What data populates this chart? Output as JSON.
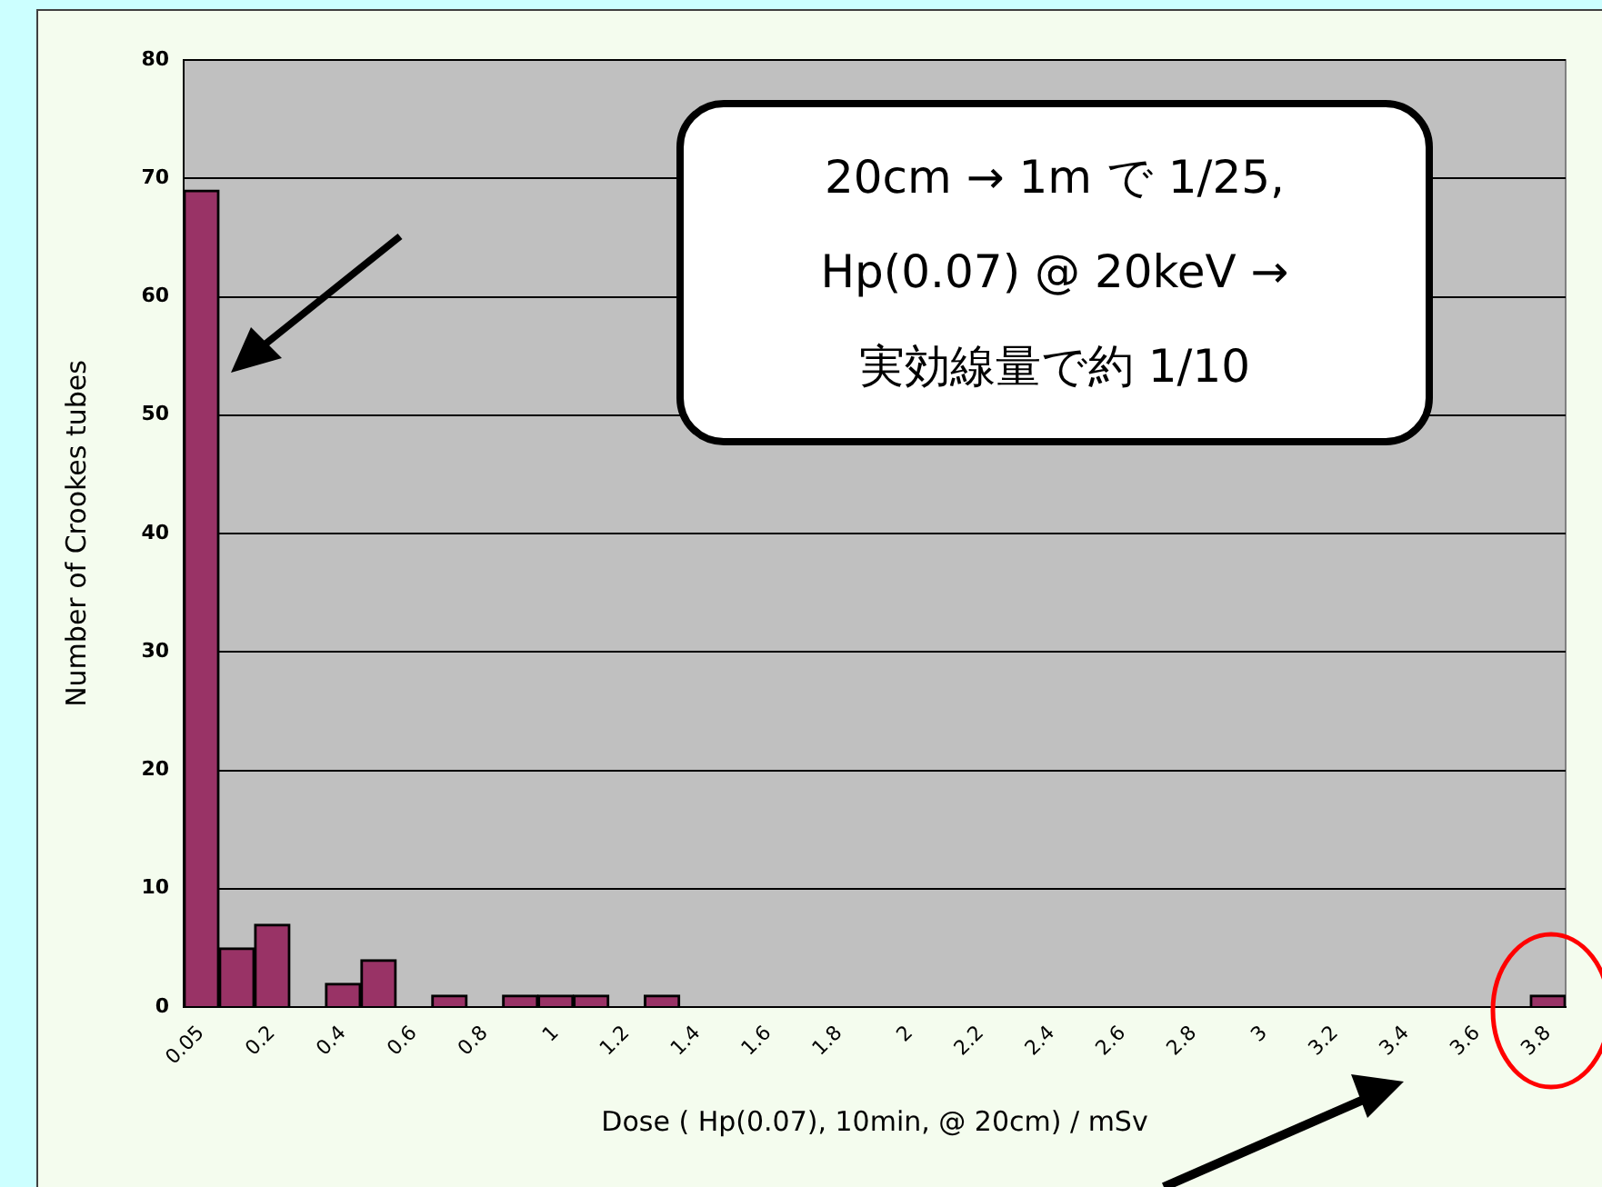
{
  "chart_data": {
    "type": "bar",
    "xlabel": "Dose ( Hp(0.07), 10min, @ 20cm) / mSv",
    "ylabel": "Number of Crookes tubes",
    "categories": [
      "0.05",
      null,
      "0.2",
      null,
      "0.4",
      null,
      "0.6",
      null,
      "0.8",
      null,
      "1",
      null,
      "1.2",
      null,
      "1.4",
      null,
      "1.6",
      null,
      "1.8",
      null,
      "2",
      null,
      "2.2",
      null,
      "2.4",
      null,
      "2.6",
      null,
      "2.8",
      null,
      "3",
      null,
      "3.2",
      null,
      "3.4",
      null,
      "3.6",
      null,
      "3.8"
    ],
    "values": [
      69,
      5,
      7,
      0,
      2,
      4,
      0,
      1,
      0,
      1,
      1,
      1,
      0,
      1,
      0,
      0,
      0,
      0,
      0,
      0,
      0,
      0,
      0,
      0,
      0,
      0,
      0,
      0,
      0,
      0,
      0,
      0,
      0,
      0,
      0,
      0,
      0,
      0,
      1
    ],
    "color": "#993366",
    "ylim": [
      0,
      80
    ],
    "yticks": [
      0,
      10,
      20,
      30,
      40,
      50,
      60,
      70,
      80
    ],
    "grid": "y",
    "legend": false,
    "annotations": [
      "20cm → 1m で 1/25,",
      "Hp(0.07) @ 20keV →",
      "実効線量で約 1/10"
    ]
  }
}
